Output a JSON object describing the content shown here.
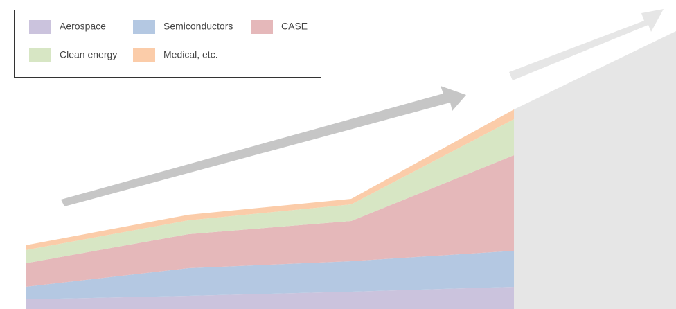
{
  "chart_data": {
    "type": "area",
    "stacked": true,
    "categories": [
      null,
      null,
      null,
      null
    ],
    "series": [
      {
        "name": "Aerospace",
        "color": "#cbc3dd",
        "values": [
          14,
          19,
          25,
          32
        ]
      },
      {
        "name": "Semiconductors",
        "color": "#b4c8e2",
        "values": [
          18,
          40,
          44,
          52
        ]
      },
      {
        "name": "CASE",
        "color": "#e5b8ba",
        "values": [
          34,
          49,
          58,
          138
        ]
      },
      {
        "name": "Clean energy",
        "color": "#d7e6c4",
        "values": [
          19,
          20,
          24,
          52
        ]
      },
      {
        "name": "Medical, etc.",
        "color": "#fbcca9",
        "values": [
          7,
          8,
          8,
          14
        ]
      }
    ],
    "ylim": [
      0,
      300
    ]
  }
}
